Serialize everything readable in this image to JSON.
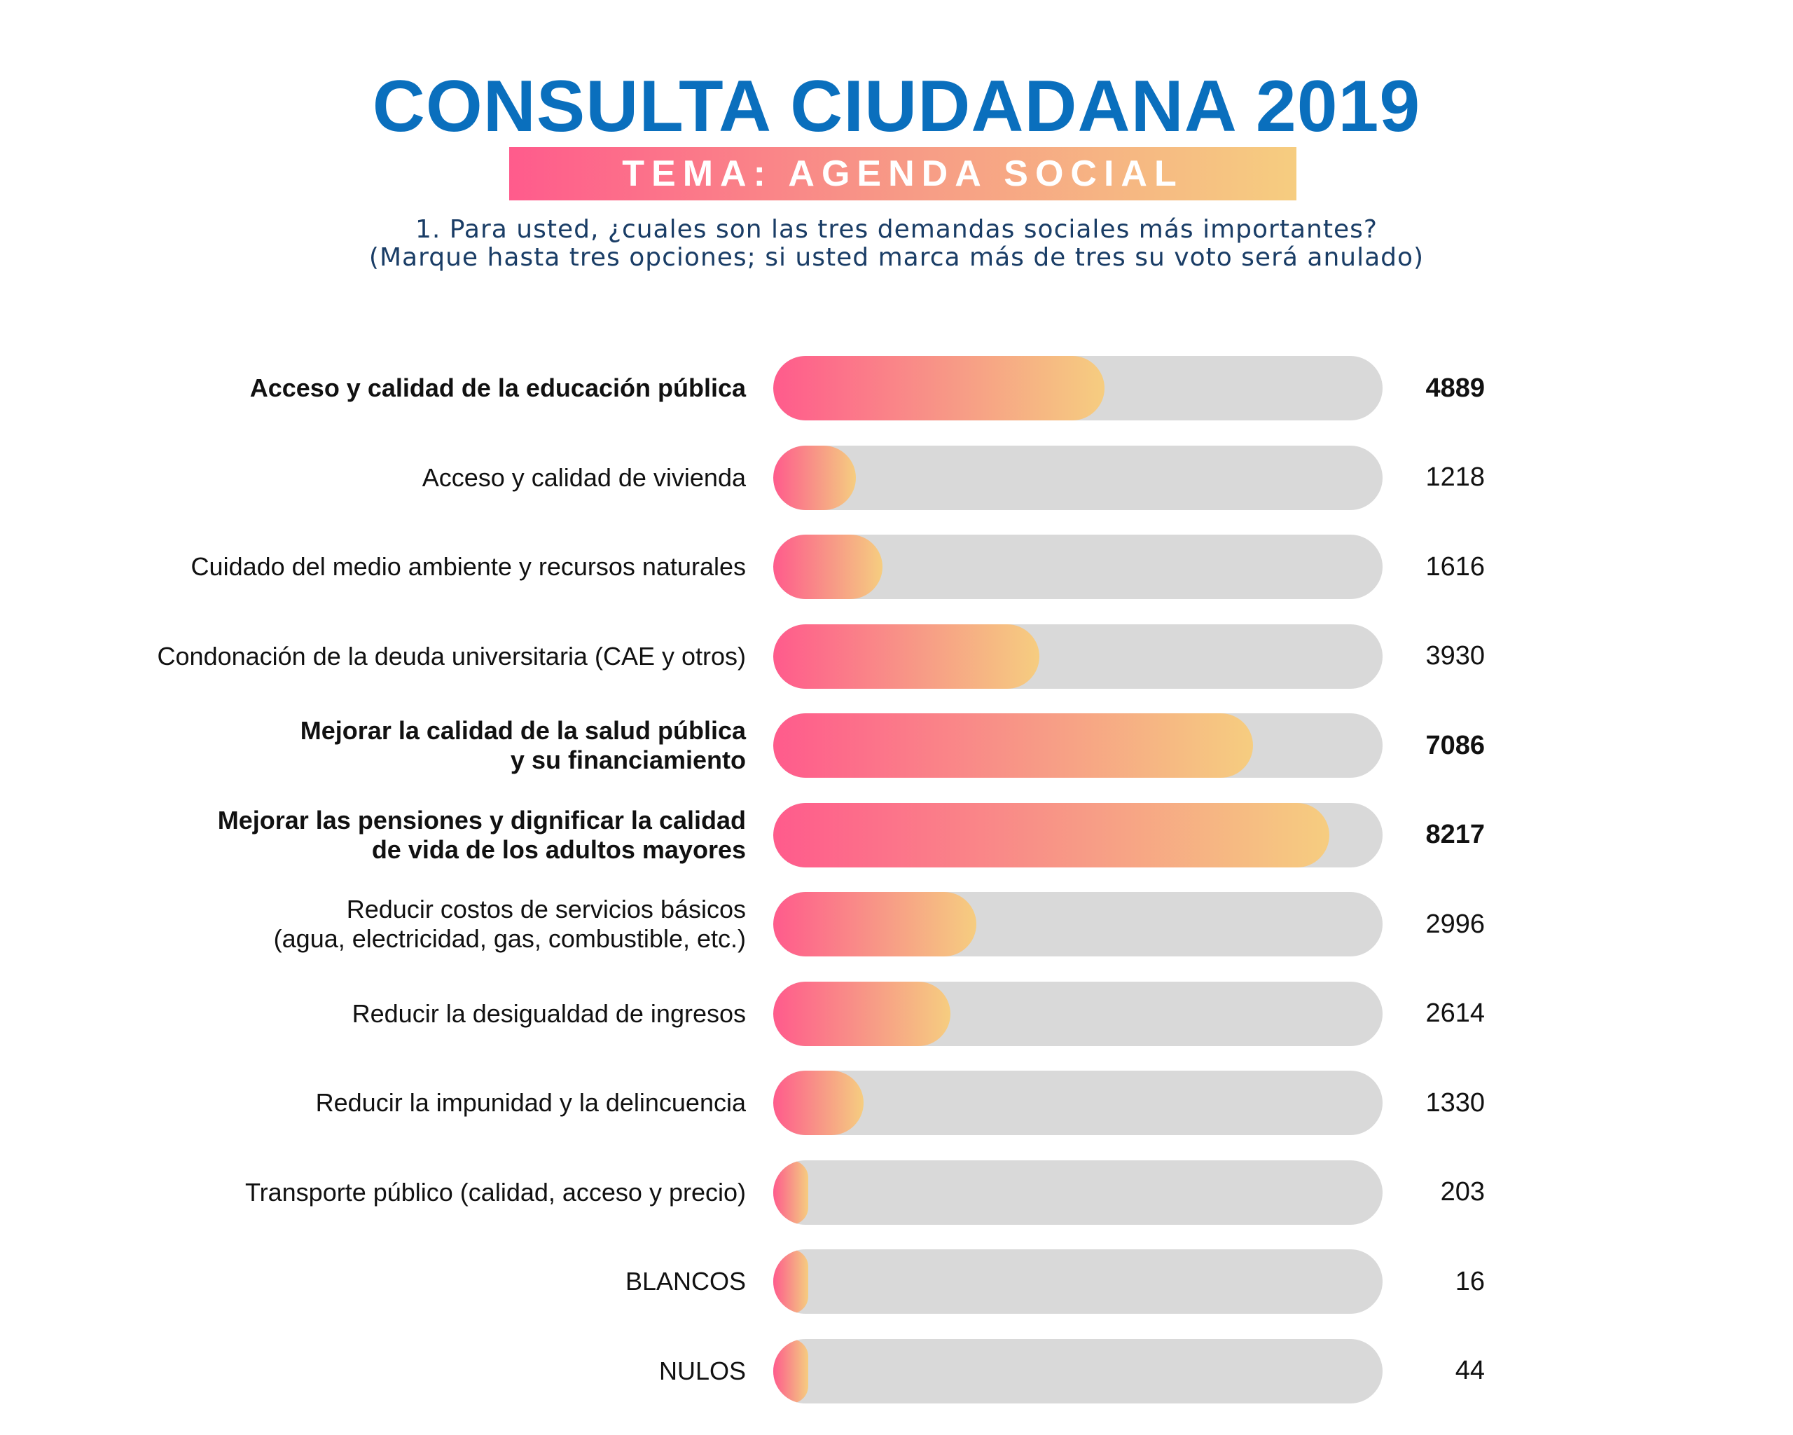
{
  "header": {
    "title": "CONSULTA CIUDADANA 2019",
    "banner": "TEMA: AGENDA SOCIAL",
    "question_line1": "1. Para usted, ¿cuales son las tres demandas sociales más importantes?",
    "question_line2": "(Marque hasta tres opciones; si usted marca más de tres su voto será anulado)"
  },
  "colors": {
    "title": "#0a6fbd",
    "gradient_start": "#ff5b8c",
    "gradient_end": "#f6cd80",
    "track": "#d9d9d9",
    "question": "#1a3d66"
  },
  "chart_data": {
    "type": "bar",
    "orientation": "horizontal",
    "title": "",
    "xlabel": "",
    "ylabel": "",
    "xlim": [
      0,
      9000
    ],
    "grid": false,
    "categories": [
      [
        "Acceso y calidad de la educación pública"
      ],
      [
        "Acceso y calidad de vivienda"
      ],
      [
        "Cuidado del medio ambiente y recursos naturales"
      ],
      [
        "Condonación de la deuda universitaria (CAE y otros)"
      ],
      [
        "Mejorar la calidad de la salud pública",
        "y su financiamiento"
      ],
      [
        "Mejorar las pensiones y dignificar la calidad",
        "de vida de los adultos mayores"
      ],
      [
        "Reducir costos de servicios básicos",
        "(agua, electricidad, gas, combustible, etc.)"
      ],
      [
        "Reducir la desigualdad de ingresos"
      ],
      [
        "Reducir la impunidad y la delincuencia"
      ],
      [
        "Transporte público (calidad, acceso y precio)"
      ],
      [
        "BLANCOS"
      ],
      [
        "NULOS"
      ]
    ],
    "values": [
      4889,
      1218,
      1616,
      3930,
      7086,
      8217,
      2996,
      2614,
      1330,
      203,
      16,
      44
    ],
    "highlighted": [
      true,
      false,
      false,
      false,
      true,
      true,
      false,
      false,
      false,
      false,
      false,
      false
    ]
  }
}
